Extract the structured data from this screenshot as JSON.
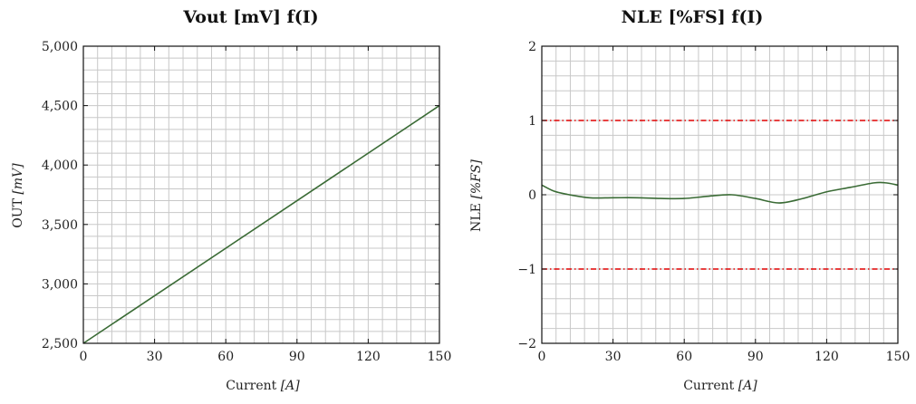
{
  "chart_data": [
    {
      "type": "line",
      "title": "Vout [mV] f(I)",
      "xlabel_text": "Current",
      "xlabel_unit": "[A]",
      "ylabel_text": "OUT",
      "ylabel_unit": "[mV]",
      "xlim": [
        0,
        150
      ],
      "ylim": [
        2500,
        5000
      ],
      "xticks": [
        0,
        30,
        60,
        90,
        120,
        150
      ],
      "xtick_labels": [
        "0",
        "30",
        "60",
        "90",
        "120",
        "150"
      ],
      "yticks": [
        2500,
        3000,
        3500,
        4000,
        4500,
        5000
      ],
      "ytick_labels": [
        "2,500",
        "3,000",
        "3,500",
        "4,000",
        "4,500",
        "5,000"
      ],
      "grid": true,
      "line_color": "#3a6b35",
      "series": [
        {
          "x": [
            0,
            150
          ],
          "y": [
            2500,
            4500
          ]
        }
      ]
    },
    {
      "type": "line",
      "title": "NLE [%FS] f(I)",
      "xlabel_text": "Current",
      "xlabel_unit": "[A]",
      "ylabel_text": "NLE",
      "ylabel_unit": "[%FS]",
      "xlim": [
        0,
        150
      ],
      "ylim": [
        -2,
        2
      ],
      "xticks": [
        0,
        30,
        60,
        90,
        120,
        150
      ],
      "xtick_labels": [
        "0",
        "30",
        "60",
        "90",
        "120",
        "150"
      ],
      "yticks": [
        -2,
        -1,
        0,
        1,
        2
      ],
      "ytick_labels": [
        "−2",
        "−1",
        "0",
        "1",
        "2"
      ],
      "grid": true,
      "line_color": "#3a6b35",
      "limit_color": "#e00000",
      "limit_lines": [
        1,
        -1
      ],
      "series": [
        {
          "x": [
            0,
            5,
            10,
            20,
            30,
            40,
            50,
            60,
            70,
            80,
            90,
            100,
            110,
            120,
            130,
            140,
            145,
            150
          ],
          "y": [
            0.13,
            0.05,
            0.01,
            -0.04,
            -0.04,
            -0.04,
            -0.05,
            -0.05,
            -0.02,
            0.0,
            -0.05,
            -0.11,
            -0.05,
            0.04,
            0.1,
            0.16,
            0.16,
            0.13
          ]
        }
      ]
    }
  ]
}
